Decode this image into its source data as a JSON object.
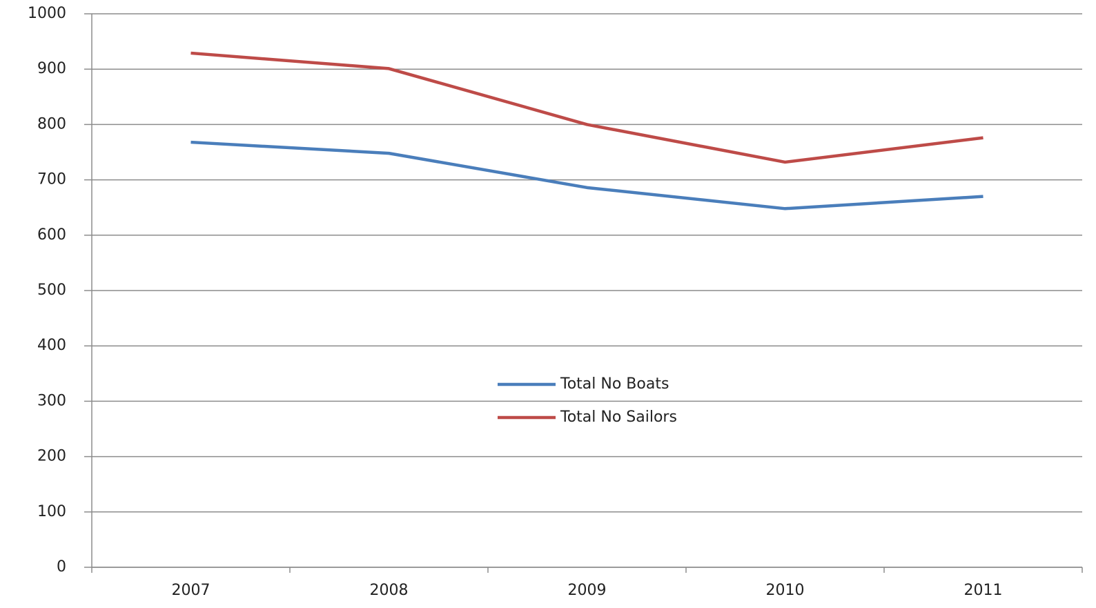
{
  "chart_data": {
    "type": "line",
    "categories": [
      "2007",
      "2008",
      "2009",
      "2010",
      "2011"
    ],
    "series": [
      {
        "name": "Total No Boats",
        "color": "#4a7ebb",
        "values": [
          768,
          748,
          686,
          648,
          670
        ]
      },
      {
        "name": "Total No Sailors",
        "color": "#be4b48",
        "values": [
          929,
          901,
          800,
          732,
          776
        ]
      }
    ],
    "ylim": [
      0,
      1000
    ],
    "yticks": [
      0,
      100,
      200,
      300,
      400,
      500,
      600,
      700,
      800,
      900,
      1000
    ],
    "grid": true,
    "legend": "center"
  }
}
